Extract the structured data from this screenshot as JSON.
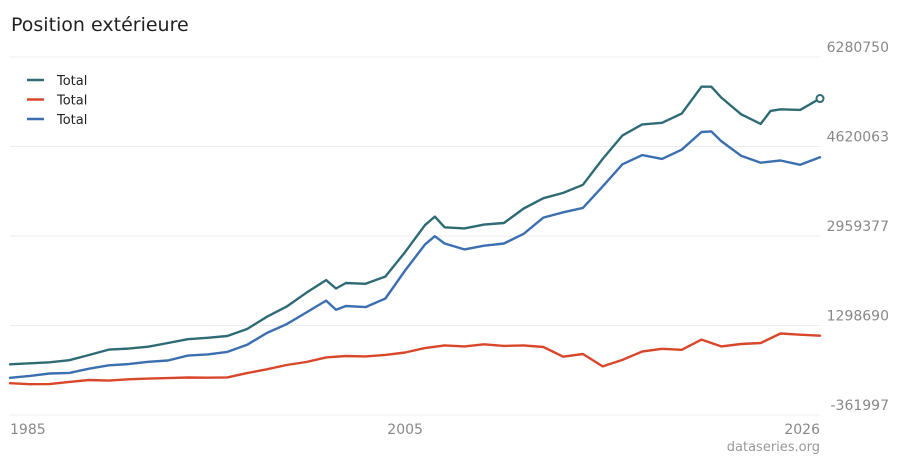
{
  "title": "Position extérieure",
  "source": "dataseries.org",
  "chart_data": {
    "type": "line",
    "title": "Position extérieure",
    "xlabel": "",
    "ylabel": "",
    "xlim": [
      1985,
      2026
    ],
    "ylim": [
      -361997,
      6280750
    ],
    "x_ticks": [
      "1985",
      "2005",
      "2026"
    ],
    "y_ticks": [
      "6280750",
      "4620063",
      "2959377",
      "1298690",
      "-361997"
    ],
    "grid": true,
    "legend": "top-left",
    "series": [
      {
        "name": "Total",
        "color": "#2e6b74",
        "points": [
          [
            1985.0,
            578000
          ],
          [
            1986.0,
            597000
          ],
          [
            1987.0,
            616000
          ],
          [
            1988.0,
            655000
          ],
          [
            1989.0,
            752000
          ],
          [
            1990.0,
            851000
          ],
          [
            1991.0,
            870000
          ],
          [
            1992.0,
            906000
          ],
          [
            1993.0,
            974000
          ],
          [
            1994.0,
            1045000
          ],
          [
            1995.0,
            1071000
          ],
          [
            1996.0,
            1103000
          ],
          [
            1997.0,
            1233000
          ],
          [
            1998.0,
            1460000
          ],
          [
            1999.0,
            1650000
          ],
          [
            2000.0,
            1905000
          ],
          [
            2001.0,
            2141000
          ],
          [
            2001.5,
            1986000
          ],
          [
            2002.0,
            2088000
          ],
          [
            2003.0,
            2072000
          ],
          [
            2004.0,
            2208000
          ],
          [
            2005.0,
            2660000
          ],
          [
            2006.0,
            3160000
          ],
          [
            2006.5,
            3320000
          ],
          [
            2007.0,
            3120000
          ],
          [
            2008.0,
            3100000
          ],
          [
            2009.0,
            3170000
          ],
          [
            2010.0,
            3200000
          ],
          [
            2011.0,
            3470000
          ],
          [
            2012.0,
            3660000
          ],
          [
            2013.0,
            3760000
          ],
          [
            2014.0,
            3910000
          ],
          [
            2015.0,
            4390000
          ],
          [
            2016.0,
            4825000
          ],
          [
            2017.0,
            5030000
          ],
          [
            2018.0,
            5060000
          ],
          [
            2019.0,
            5230000
          ],
          [
            2020.0,
            5730000
          ],
          [
            2020.5,
            5730000
          ],
          [
            2021.0,
            5530000
          ],
          [
            2022.0,
            5220000
          ],
          [
            2023.0,
            5040000
          ],
          [
            2023.5,
            5280000
          ],
          [
            2024.0,
            5310000
          ],
          [
            2025.0,
            5300000
          ],
          [
            2026.0,
            5510000
          ]
        ]
      },
      {
        "name": "Total",
        "color": "#d9472b",
        "points": [
          [
            1985.0,
            228000
          ],
          [
            1986.0,
            210000
          ],
          [
            1987.0,
            211000
          ],
          [
            1988.0,
            252000
          ],
          [
            1989.0,
            288000
          ],
          [
            1990.0,
            276000
          ],
          [
            1991.0,
            300000
          ],
          [
            1992.0,
            314000
          ],
          [
            1993.0,
            322000
          ],
          [
            1994.0,
            334000
          ],
          [
            1995.0,
            330000
          ],
          [
            1996.0,
            336000
          ],
          [
            1997.0,
            416000
          ],
          [
            1998.0,
            486000
          ],
          [
            1999.0,
            566000
          ],
          [
            2000.0,
            622000
          ],
          [
            2001.0,
            706000
          ],
          [
            2002.0,
            732000
          ],
          [
            2003.0,
            726000
          ],
          [
            2004.0,
            754000
          ],
          [
            2005.0,
            798000
          ],
          [
            2006.0,
            880000
          ],
          [
            2007.0,
            930000
          ],
          [
            2008.0,
            910000
          ],
          [
            2009.0,
            950000
          ],
          [
            2010.0,
            920000
          ],
          [
            2011.0,
            930000
          ],
          [
            2012.0,
            900000
          ],
          [
            2013.0,
            720000
          ],
          [
            2014.0,
            770000
          ],
          [
            2015.0,
            540000
          ],
          [
            2016.0,
            660000
          ],
          [
            2017.0,
            816000
          ],
          [
            2018.0,
            866000
          ],
          [
            2019.0,
            848000
          ],
          [
            2020.0,
            1037000
          ],
          [
            2021.0,
            910000
          ],
          [
            2022.0,
            956000
          ],
          [
            2023.0,
            974000
          ],
          [
            2024.0,
            1150000
          ],
          [
            2025.0,
            1128000
          ],
          [
            2026.0,
            1110000
          ]
        ]
      },
      {
        "name": "Total",
        "color": "#3c6fb0",
        "points": [
          [
            1985.0,
            329000
          ],
          [
            1986.0,
            364000
          ],
          [
            1987.0,
            408000
          ],
          [
            1988.0,
            420000
          ],
          [
            1989.0,
            498000
          ],
          [
            1990.0,
            561000
          ],
          [
            1991.0,
            582000
          ],
          [
            1992.0,
            626000
          ],
          [
            1993.0,
            650000
          ],
          [
            1994.0,
            740000
          ],
          [
            1995.0,
            762000
          ],
          [
            1996.0,
            809000
          ],
          [
            1997.0,
            940000
          ],
          [
            1998.0,
            1160000
          ],
          [
            1999.0,
            1323000
          ],
          [
            2000.0,
            1540000
          ],
          [
            2001.0,
            1760000
          ],
          [
            2001.5,
            1590000
          ],
          [
            2002.0,
            1660000
          ],
          [
            2003.0,
            1640000
          ],
          [
            2004.0,
            1800000
          ],
          [
            2005.0,
            2320000
          ],
          [
            2006.0,
            2800000
          ],
          [
            2006.5,
            2955000
          ],
          [
            2007.0,
            2820000
          ],
          [
            2008.0,
            2710000
          ],
          [
            2009.0,
            2780000
          ],
          [
            2010.0,
            2820000
          ],
          [
            2011.0,
            3000000
          ],
          [
            2012.0,
            3300000
          ],
          [
            2013.0,
            3400000
          ],
          [
            2014.0,
            3480000
          ],
          [
            2015.0,
            3880000
          ],
          [
            2016.0,
            4290000
          ],
          [
            2017.0,
            4460000
          ],
          [
            2018.0,
            4390000
          ],
          [
            2019.0,
            4560000
          ],
          [
            2020.0,
            4890000
          ],
          [
            2020.5,
            4900000
          ],
          [
            2021.0,
            4720000
          ],
          [
            2022.0,
            4450000
          ],
          [
            2023.0,
            4320000
          ],
          [
            2023.5,
            4340000
          ],
          [
            2024.0,
            4360000
          ],
          [
            2025.0,
            4280000
          ],
          [
            2026.0,
            4420000
          ]
        ]
      }
    ]
  }
}
